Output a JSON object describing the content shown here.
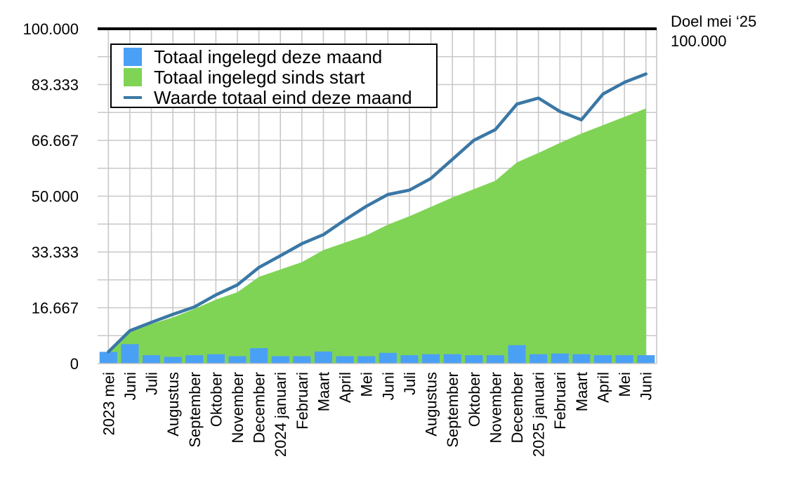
{
  "goal": {
    "label": "Doel mei ‘25",
    "value_text": "100.000"
  },
  "legend": {
    "items": [
      {
        "label": "Totaal ingelegd deze maand",
        "color": "#4aa0f5"
      },
      {
        "label": "Totaal ingelegd sinds start",
        "color": "#7fd455"
      },
      {
        "label": "Waarde totaal eind deze maand",
        "color": "#3a77a5"
      }
    ]
  },
  "chart_data": {
    "type": "bar",
    "categories": [
      "2023 mei",
      "Juni",
      "Juli",
      "Augustus",
      "September",
      "Oktober",
      "November",
      "December",
      "2024 januari",
      "Februari",
      "Maart",
      "April",
      "Mei",
      "Juni",
      "Juli",
      "Augustus",
      "September",
      "Oktober",
      "November",
      "December",
      "2025 januari",
      "Februari",
      "Maart",
      "April",
      "Mei",
      "Juni"
    ],
    "ylim": [
      0,
      100000
    ],
    "yticks": [
      0,
      16667,
      33333,
      50000,
      66667,
      83333,
      100000
    ],
    "ytick_labels": [
      "0",
      "16.667",
      "33.333",
      "50.000",
      "66.667",
      "83.333",
      "100.000"
    ],
    "goal_line": 100000,
    "series": [
      {
        "name": "Totaal ingelegd deze maand",
        "type": "bar",
        "values": [
          3500,
          5800,
          2500,
          2000,
          2500,
          2800,
          2200,
          4600,
          2200,
          2200,
          3600,
          2200,
          2200,
          3200,
          2500,
          2800,
          2800,
          2500,
          2500,
          5500,
          2800,
          3000,
          2800,
          2500,
          2500,
          2500
        ]
      },
      {
        "name": "Totaal ingelegd sinds start",
        "type": "area",
        "values": [
          3500,
          9300,
          11800,
          13800,
          16300,
          19100,
          21300,
          25900,
          28100,
          30300,
          33900,
          36100,
          38300,
          41500,
          44000,
          46800,
          49600,
          52100,
          54600,
          60100,
          62900,
          65900,
          68700,
          71200,
          73700,
          76200
        ]
      },
      {
        "name": "Waarde totaal eind deze maand",
        "type": "line",
        "values": [
          3500,
          9800,
          12300,
          14700,
          16900,
          20500,
          23500,
          28700,
          32200,
          35800,
          38500,
          42900,
          47000,
          50500,
          51800,
          55300,
          61000,
          66700,
          69900,
          77500,
          79300,
          75300,
          72800,
          80500,
          84000,
          86500
        ]
      }
    ]
  }
}
